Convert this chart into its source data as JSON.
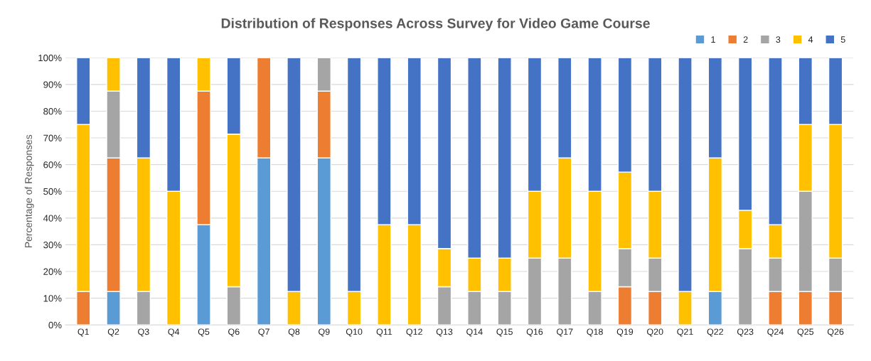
{
  "chart_data": {
    "type": "bar",
    "title": "Distribution of Responses Across Survey for Video Game Course",
    "ylabel": "Percentage of Responses",
    "stacked": true,
    "categories": [
      "Q1",
      "Q2",
      "Q3",
      "Q4",
      "Q5",
      "Q6",
      "Q7",
      "Q8",
      "Q9",
      "Q10",
      "Q11",
      "Q12",
      "Q13",
      "Q14",
      "Q15",
      "Q16",
      "Q17",
      "Q18",
      "Q19",
      "Q20",
      "Q21",
      "Q22",
      "Q23",
      "Q24",
      "Q25",
      "Q26"
    ],
    "series": [
      {
        "name": "1",
        "color": "#5b9bd5",
        "values": [
          null,
          12.5,
          null,
          null,
          37.5,
          null,
          62.5,
          null,
          62.5,
          null,
          null,
          null,
          null,
          null,
          null,
          null,
          null,
          null,
          null,
          null,
          null,
          12.5,
          null,
          null,
          null,
          null
        ]
      },
      {
        "name": "2",
        "color": "#ed7d31",
        "values": [
          12.5,
          50,
          null,
          null,
          50,
          null,
          37.5,
          null,
          25,
          null,
          null,
          null,
          null,
          null,
          null,
          null,
          null,
          null,
          14.3,
          12.5,
          null,
          null,
          null,
          12.5,
          12.5,
          12.5
        ]
      },
      {
        "name": "3",
        "color": "#a5a5a5",
        "values": [
          null,
          25,
          12.5,
          null,
          null,
          14.3,
          null,
          null,
          12.5,
          null,
          null,
          null,
          14.3,
          12.5,
          12.5,
          25,
          25,
          12.5,
          14.3,
          12.5,
          null,
          null,
          28.6,
          12.5,
          37.5,
          12.5
        ]
      },
      {
        "name": "4",
        "color": "#ffc000",
        "values": [
          62.5,
          12.5,
          50,
          50,
          12.5,
          57.1,
          null,
          12.5,
          null,
          12.5,
          37.5,
          37.5,
          14.3,
          12.5,
          12.5,
          25,
          37.5,
          37.5,
          28.6,
          25,
          12.5,
          50,
          14.3,
          12.5,
          25,
          50
        ]
      },
      {
        "name": "5",
        "color": "#4472c4",
        "values": [
          25,
          null,
          37.5,
          50,
          null,
          28.6,
          null,
          87.5,
          null,
          87.5,
          62.5,
          62.5,
          71.4,
          75,
          75,
          50,
          37.5,
          50,
          42.8,
          50,
          87.5,
          37.5,
          57.1,
          62.5,
          25,
          25
        ]
      }
    ],
    "ylim": [
      0,
      100
    ],
    "yticks": [
      {
        "value": 0,
        "label": "0%"
      },
      {
        "value": 10,
        "label": "10%"
      },
      {
        "value": 20,
        "label": "20%"
      },
      {
        "value": 30,
        "label": "30%"
      },
      {
        "value": 40,
        "label": "40%"
      },
      {
        "value": 50,
        "label": "50%"
      },
      {
        "value": 60,
        "label": "60%"
      },
      {
        "value": 70,
        "label": "70%"
      },
      {
        "value": 80,
        "label": "80%"
      },
      {
        "value": 90,
        "label": "90%"
      },
      {
        "value": 100,
        "label": "100%"
      }
    ],
    "grid": "y",
    "legend": "top right"
  }
}
